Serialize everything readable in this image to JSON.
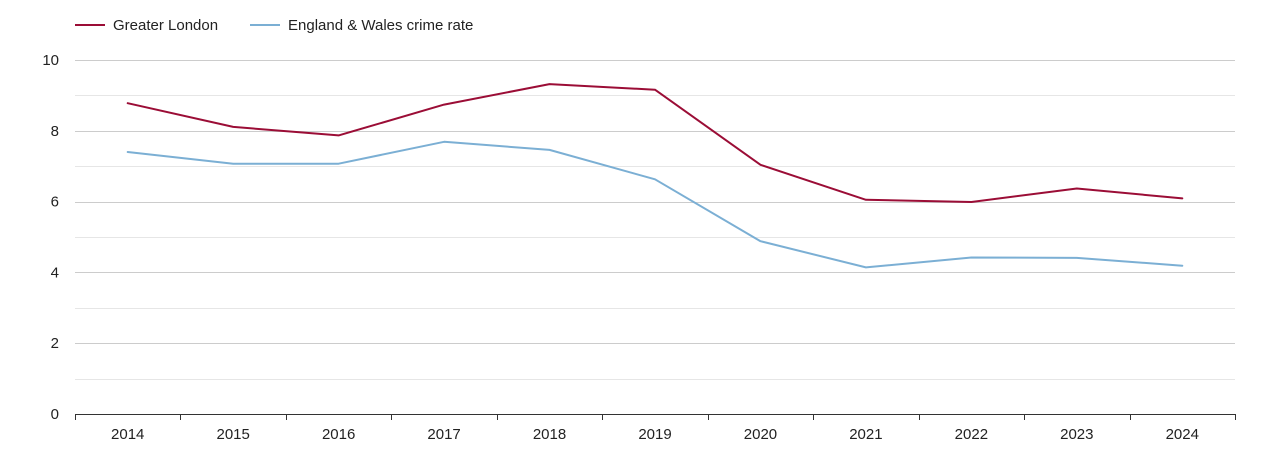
{
  "chart_data": {
    "type": "line",
    "x": [
      "2014",
      "2015",
      "2016",
      "2017",
      "2018",
      "2019",
      "2020",
      "2021",
      "2022",
      "2023",
      "2024"
    ],
    "series": [
      {
        "name": "Greater London",
        "color": "#9b0d36",
        "values": [
          8.78,
          8.11,
          7.87,
          8.74,
          9.32,
          9.16,
          7.04,
          6.05,
          5.99,
          6.37,
          6.09
        ]
      },
      {
        "name": "England & Wales crime rate",
        "color": "#7bafd4",
        "values": [
          7.4,
          7.07,
          7.07,
          7.69,
          7.46,
          6.63,
          4.88,
          4.14,
          4.42,
          4.41,
          4.19
        ]
      }
    ],
    "yticks": [
      "0",
      "2",
      "4",
      "6",
      "8",
      "10"
    ],
    "ylim": [
      0,
      10
    ],
    "grid": true,
    "legend_position": "top-left",
    "colors": {
      "major_grid": "#cccccc",
      "minor_grid": "#e6e6e6",
      "axis": "#333333"
    }
  }
}
